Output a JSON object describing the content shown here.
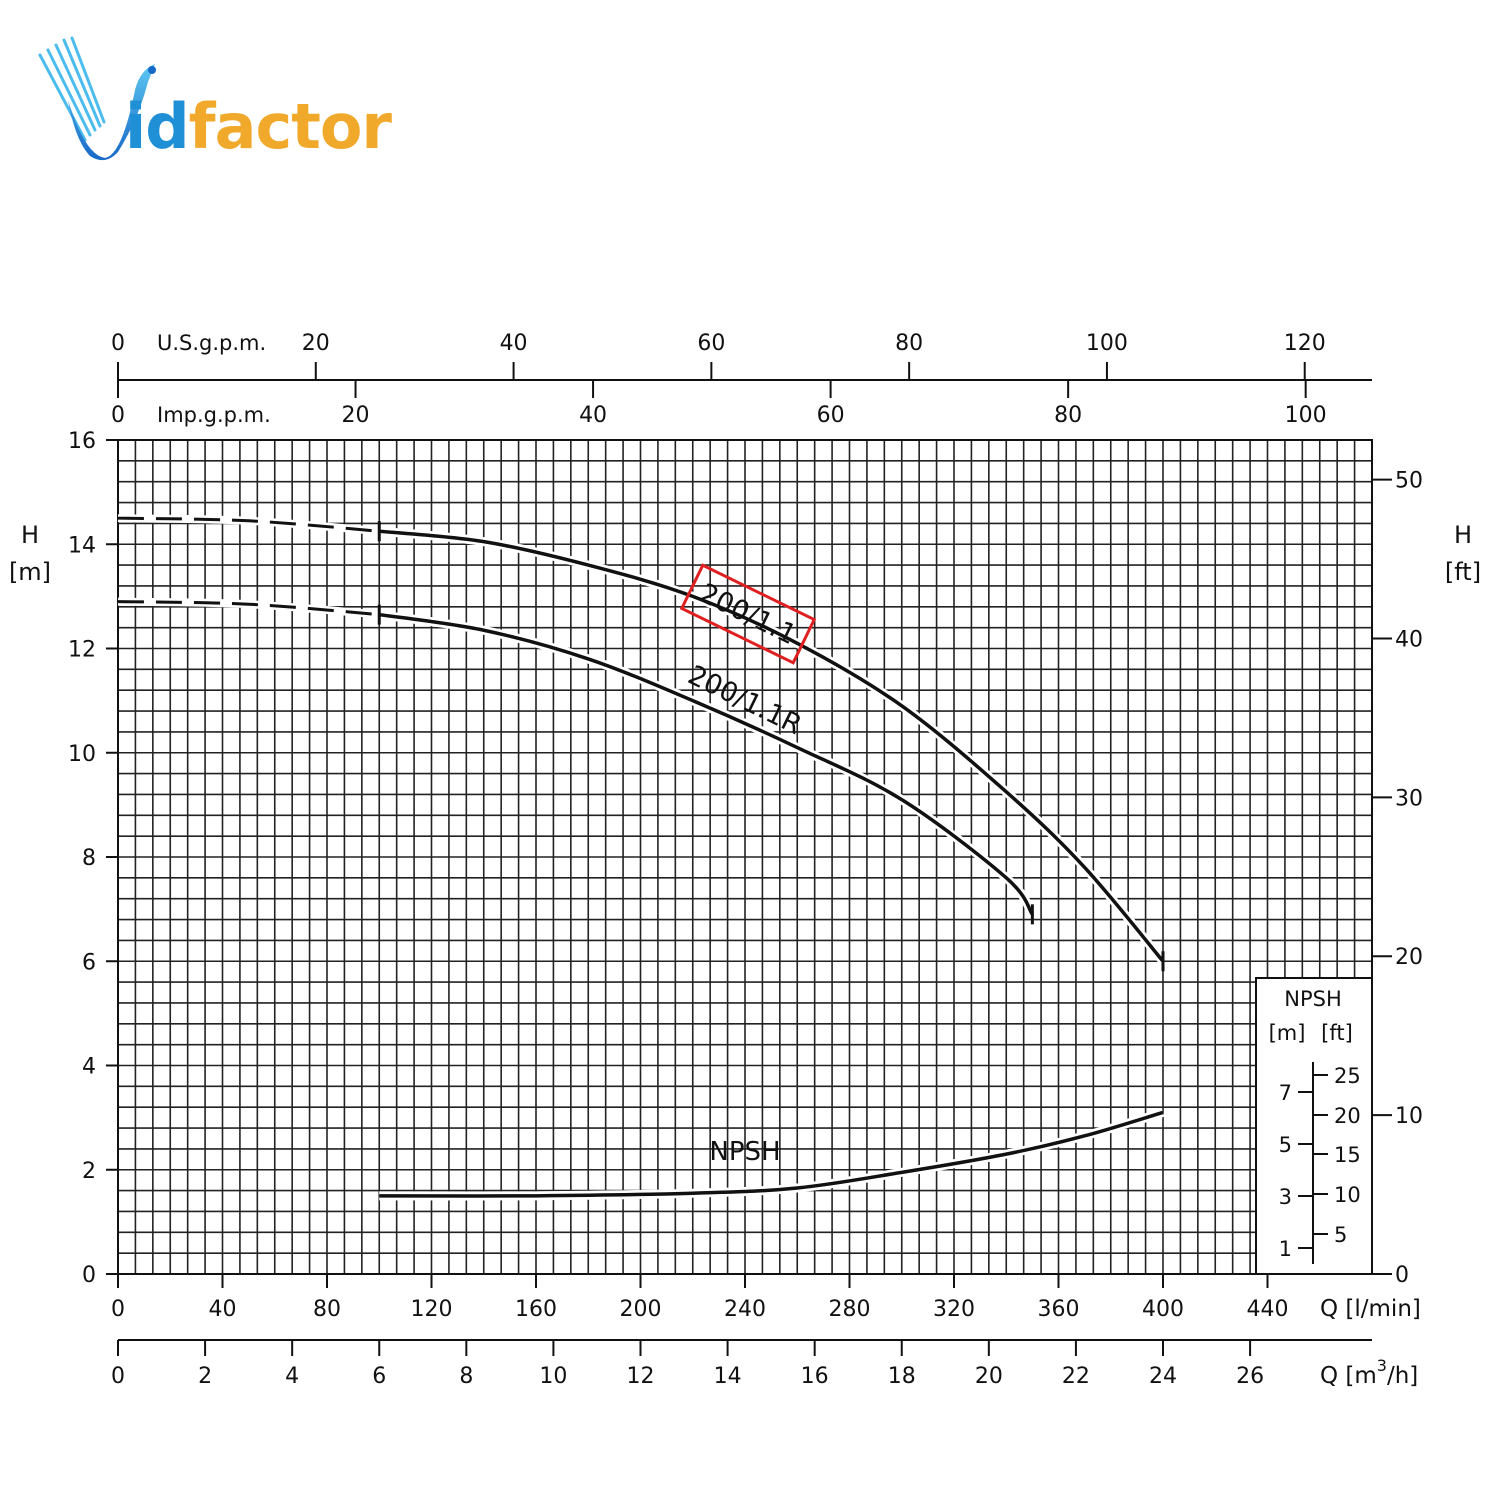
{
  "logo": {
    "text_part1": "id",
    "text_part2": "factor",
    "colors": {
      "blue": "#1f8fd6",
      "orange": "#f0a92a"
    }
  },
  "chart_data": {
    "type": "line",
    "title": "",
    "x": {
      "label": "Q [l/min]",
      "range": [
        0,
        480
      ],
      "ticks": [
        0,
        40,
        80,
        120,
        160,
        200,
        240,
        280,
        320,
        360,
        400,
        440
      ]
    },
    "x_secondary": {
      "label": "Q [m³/h]",
      "label_base": "Q [m",
      "label_exp": "3",
      "label_end": "/h]",
      "ticks": [
        0,
        2,
        4,
        6,
        8,
        10,
        12,
        14,
        16,
        18,
        20,
        22,
        24,
        26
      ]
    },
    "x_top_usgpm": {
      "label": "U.S.g.p.m.",
      "ticks": [
        0,
        20,
        40,
        60,
        80,
        100,
        120
      ]
    },
    "x_top_impgpm": {
      "label": "Imp.g.p.m.",
      "ticks": [
        0,
        20,
        40,
        60,
        80,
        100
      ]
    },
    "y": {
      "label_top": "H",
      "label_unit": "[m]",
      "range": [
        0,
        16
      ],
      "ticks": [
        0,
        2,
        4,
        6,
        8,
        10,
        12,
        14,
        16
      ]
    },
    "y_right": {
      "label_top": "H",
      "label_unit": "[ft]",
      "ticks": [
        0,
        10,
        20,
        30,
        40,
        50
      ]
    },
    "series": [
      {
        "name": "200/1.1",
        "dashed_points": [
          [
            0,
            14.5
          ],
          [
            50,
            14.45
          ],
          [
            100,
            14.25
          ]
        ],
        "points": [
          [
            100,
            14.25
          ],
          [
            140,
            14.05
          ],
          [
            180,
            13.6
          ],
          [
            220,
            13.0
          ],
          [
            260,
            12.1
          ],
          [
            300,
            10.9
          ],
          [
            340,
            9.25
          ],
          [
            370,
            7.8
          ],
          [
            400,
            6.0
          ]
        ]
      },
      {
        "name": "200/1.1R",
        "dashed_points": [
          [
            0,
            12.9
          ],
          [
            50,
            12.85
          ],
          [
            100,
            12.65
          ]
        ],
        "points": [
          [
            100,
            12.65
          ],
          [
            140,
            12.35
          ],
          [
            180,
            11.8
          ],
          [
            220,
            11.0
          ],
          [
            260,
            10.1
          ],
          [
            300,
            9.1
          ],
          [
            340,
            7.6
          ],
          [
            350,
            6.9
          ]
        ]
      },
      {
        "name": "NPSH",
        "points": [
          [
            100,
            1.5
          ],
          [
            160,
            1.5
          ],
          [
            220,
            1.55
          ],
          [
            260,
            1.65
          ],
          [
            300,
            1.95
          ],
          [
            340,
            2.3
          ],
          [
            370,
            2.65
          ],
          [
            400,
            3.1
          ]
        ]
      }
    ],
    "highlight": {
      "label": "200/1.1",
      "color": "#e02020"
    },
    "npsh_inset": {
      "title": "NPSH",
      "unit_m": "[m]",
      "unit_ft": "[ft]",
      "m_ticks": [
        "1",
        "3",
        "5",
        "7"
      ],
      "ft_ticks": [
        "5",
        "10",
        "15",
        "20",
        "25"
      ]
    }
  }
}
